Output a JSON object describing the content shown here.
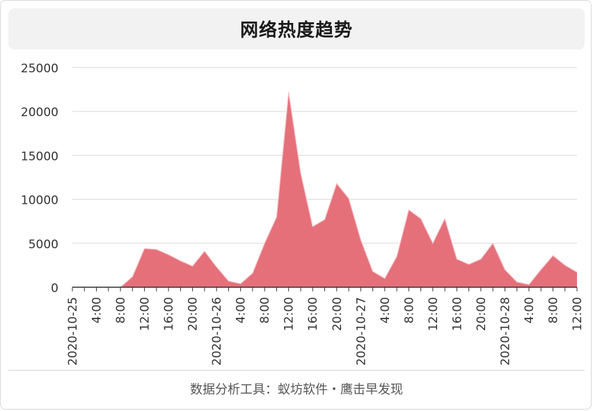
{
  "header": {
    "title": "网络热度趋势"
  },
  "footer": {
    "text": "数据分析工具：蚁坊软件・鹰击早发现"
  },
  "chart_data": {
    "type": "area",
    "title": "网络热度趋势",
    "xlabel": "",
    "ylabel": "",
    "ylim": [
      0,
      25000
    ],
    "yticks": [
      0,
      5000,
      10000,
      15000,
      20000,
      25000
    ],
    "grid": true,
    "color": "#e5707a",
    "x": [
      "2020-10-25",
      "2:00",
      "4:00",
      "6:00",
      "8:00",
      "10:00",
      "12:00",
      "14:00",
      "16:00",
      "18:00",
      "20:00",
      "22:00",
      "2020-10-26",
      "2:00",
      "4:00",
      "6:00",
      "8:00",
      "10:00",
      "12:00",
      "14:00",
      "16:00",
      "18:00",
      "20:00",
      "22:00",
      "2020-10-27",
      "2:00",
      "4:00",
      "6:00",
      "8:00",
      "10:00",
      "12:00",
      "14:00",
      "16:00",
      "18:00",
      "20:00",
      "22:00",
      "2020-10-28",
      "2:00",
      "4:00",
      "6:00",
      "8:00",
      "10:00",
      "12:00"
    ],
    "tick_labels": [
      "2020-10-25",
      "4:00",
      "8:00",
      "12:00",
      "16:00",
      "20:00",
      "2020-10-26",
      "4:00",
      "8:00",
      "12:00",
      "16:00",
      "20:00",
      "2020-10-27",
      "4:00",
      "8:00",
      "12:00",
      "16:00",
      "20:00",
      "2020-10-28",
      "4:00",
      "8:00",
      "12:00"
    ],
    "values": [
      0,
      0,
      0,
      0,
      0,
      1200,
      4400,
      4300,
      3700,
      3000,
      2400,
      4100,
      2300,
      700,
      400,
      1600,
      5000,
      8000,
      22200,
      13000,
      6900,
      7700,
      11800,
      10100,
      5400,
      1800,
      1000,
      3500,
      8800,
      7800,
      5000,
      7800,
      3200,
      2600,
      3200,
      5000,
      2000,
      600,
      300,
      2000,
      3600,
      2500,
      1700
    ]
  }
}
